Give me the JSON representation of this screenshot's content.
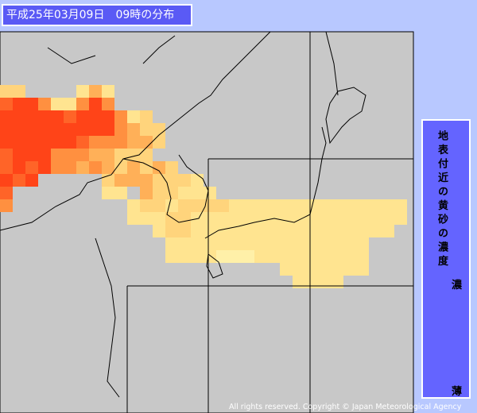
{
  "header": {
    "title": "平成25年03月09日　09時の分布"
  },
  "legend": {
    "title": "地表付近の黄砂の濃度",
    "high": "濃",
    "low": "薄"
  },
  "footer": {
    "copyright": "All rights reserved. Copyright © Japan Meteorological Agency"
  }
}
